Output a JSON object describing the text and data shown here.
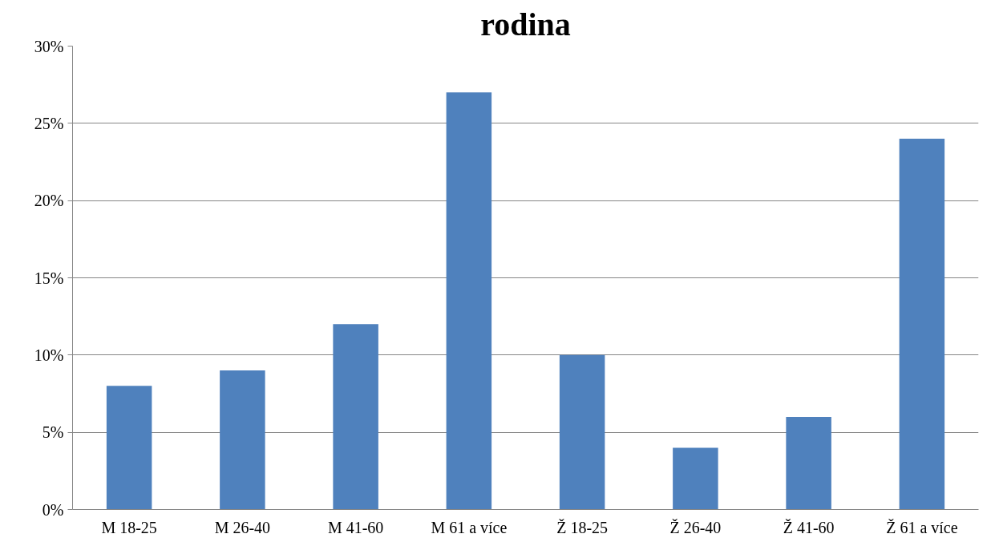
{
  "chart_data": {
    "type": "bar",
    "title": "rodina",
    "categories": [
      "M 18-25",
      "M 26-40",
      "M 41-60",
      "M 61 a více",
      "Ž 18-25",
      "Ž 26-40",
      "Ž 41-60",
      "Ž 61 a více"
    ],
    "values": [
      8,
      9,
      12,
      27,
      10,
      4,
      6,
      24
    ],
    "color": "#4f81bd",
    "ylim": [
      0,
      30
    ],
    "yticks": [
      {
        "value": 0,
        "label": "0%"
      },
      {
        "value": 5,
        "label": "5%"
      },
      {
        "value": 10,
        "label": "10%"
      },
      {
        "value": 15,
        "label": "15%"
      },
      {
        "value": 20,
        "label": "20%"
      },
      {
        "value": 25,
        "label": "25%"
      },
      {
        "value": 30,
        "label": "30%"
      }
    ],
    "grid": "y"
  }
}
